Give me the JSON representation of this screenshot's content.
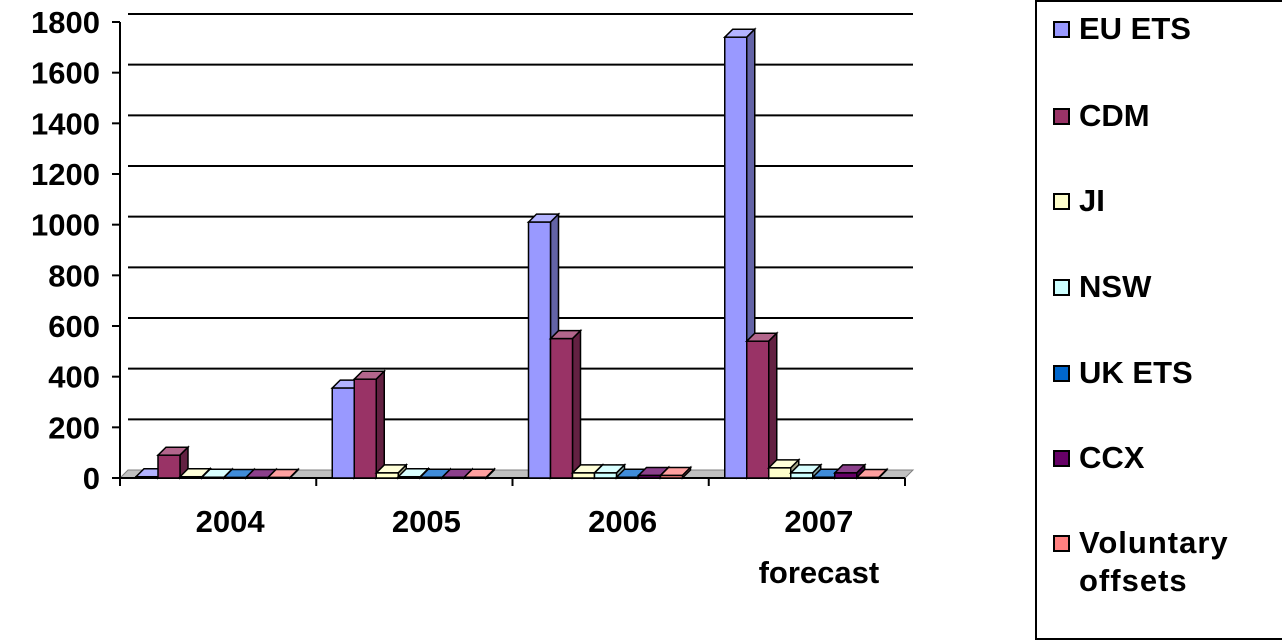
{
  "chart_data": {
    "type": "bar",
    "three_d": true,
    "categories": [
      "2004",
      "2005",
      "2006",
      "2007 forecast"
    ],
    "category_lines": [
      [
        "2004"
      ],
      [
        "2005"
      ],
      [
        "2006"
      ],
      [
        "2007",
        "forecast"
      ]
    ],
    "series": [
      {
        "name": "EU ETS",
        "color": "#9999ff",
        "values": [
          5,
          355,
          1010,
          1740
        ]
      },
      {
        "name": "CDM",
        "color": "#993366",
        "values": [
          90,
          390,
          550,
          540
        ]
      },
      {
        "name": "JI",
        "color": "#ffffcc",
        "values": [
          5,
          20,
          20,
          40
        ]
      },
      {
        "name": "NSW",
        "color": "#ccffff",
        "values": [
          3,
          5,
          20,
          20
        ]
      },
      {
        "name": "UK ETS",
        "color": "#0066cc",
        "values": [
          2,
          3,
          3,
          3
        ]
      },
      {
        "name": "CCX",
        "color": "#660066",
        "values": [
          2,
          3,
          10,
          20
        ]
      },
      {
        "name": "Voluntary offsets",
        "color": "#ff8080",
        "values": [
          2,
          3,
          10,
          2
        ]
      }
    ],
    "y_ticks": [
      0,
      200,
      400,
      600,
      800,
      1000,
      1200,
      1400,
      1600,
      1800
    ],
    "ylim": [
      0,
      1800
    ],
    "grid": true,
    "legend": "right",
    "xlabel": "",
    "ylabel": ""
  }
}
